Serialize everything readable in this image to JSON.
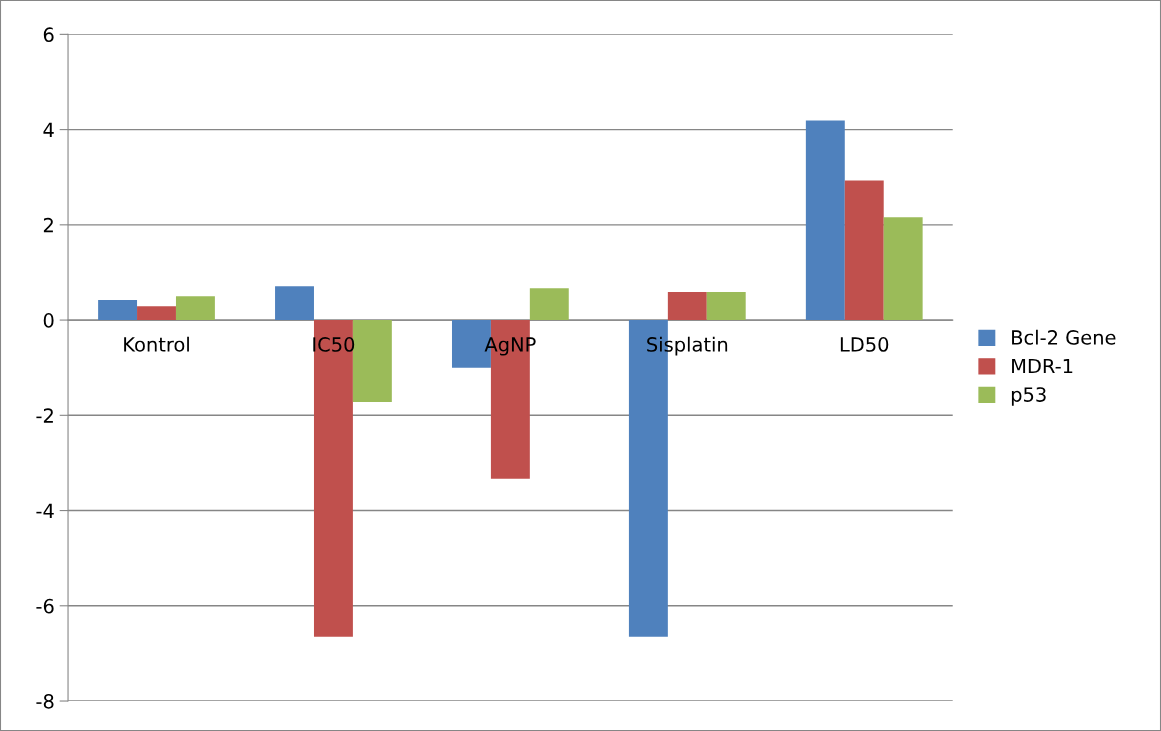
{
  "chart_data": {
    "type": "bar",
    "categories": [
      "Kontrol",
      "IC50",
      "AgNP",
      "Sisplatin",
      "LD50"
    ],
    "series": [
      {
        "name": "Bcl-2 Gene",
        "color": "#4f81bd",
        "values": [
          0.42,
          0.71,
          -1.0,
          -6.65,
          4.19
        ]
      },
      {
        "name": "MDR-1",
        "color": "#c0504d",
        "values": [
          0.29,
          -6.65,
          -3.33,
          0.59,
          2.93
        ]
      },
      {
        "name": "p53",
        "color": "#9bbb59",
        "values": [
          0.5,
          -1.72,
          0.67,
          0.59,
          2.16
        ]
      }
    ],
    "ylim": [
      -8,
      6
    ],
    "yticks": [
      -8,
      -6,
      -4,
      -2,
      0,
      2,
      4,
      6
    ],
    "grid": "y",
    "legend": "right"
  }
}
